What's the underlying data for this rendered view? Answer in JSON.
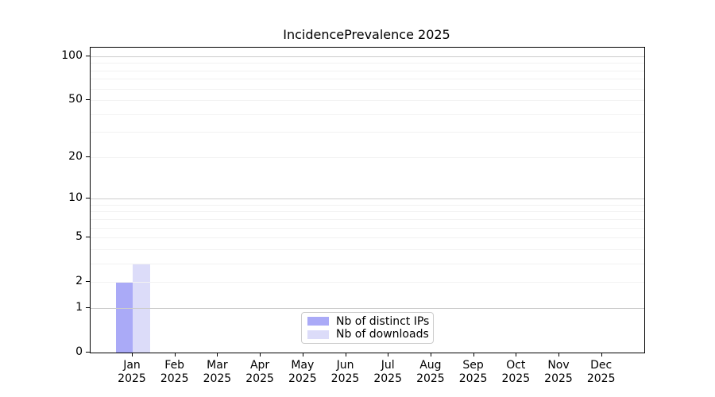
{
  "chart_data": {
    "type": "bar",
    "title": "IncidencePrevalence 2025",
    "year_label": "2025",
    "categories": [
      "Jan",
      "Feb",
      "Mar",
      "Apr",
      "May",
      "Jun",
      "Jul",
      "Aug",
      "Sep",
      "Oct",
      "Nov",
      "Dec"
    ],
    "series": [
      {
        "name": "Nb of distinct IPs",
        "color": "#aaaaf7",
        "values": [
          2,
          0,
          0,
          0,
          0,
          0,
          0,
          0,
          0,
          0,
          0,
          0
        ]
      },
      {
        "name": "Nb of downloads",
        "color": "#dcdcf9",
        "values": [
          3,
          0,
          0,
          0,
          0,
          0,
          0,
          0,
          0,
          0,
          0,
          0
        ]
      }
    ],
    "xlabel": "",
    "ylabel": "",
    "y_axis": {
      "scale": "log1p",
      "ticks": [
        0,
        1,
        2,
        5,
        10,
        20,
        50,
        100
      ],
      "major_gridlines": [
        1,
        10,
        100
      ],
      "minor_gridlines": [
        2,
        3,
        4,
        5,
        6,
        7,
        8,
        9,
        20,
        30,
        40,
        50,
        60,
        70,
        80,
        90
      ],
      "ylim": [
        0,
        114.5
      ]
    },
    "legend": {
      "position": "lower-center",
      "entries": [
        "Nb of distinct IPs",
        "Nb of downloads"
      ]
    },
    "colors": {
      "major_grid": "#cccccc",
      "minor_grid": "#f2f2f2",
      "spine": "#000000",
      "background": "#ffffff"
    }
  }
}
